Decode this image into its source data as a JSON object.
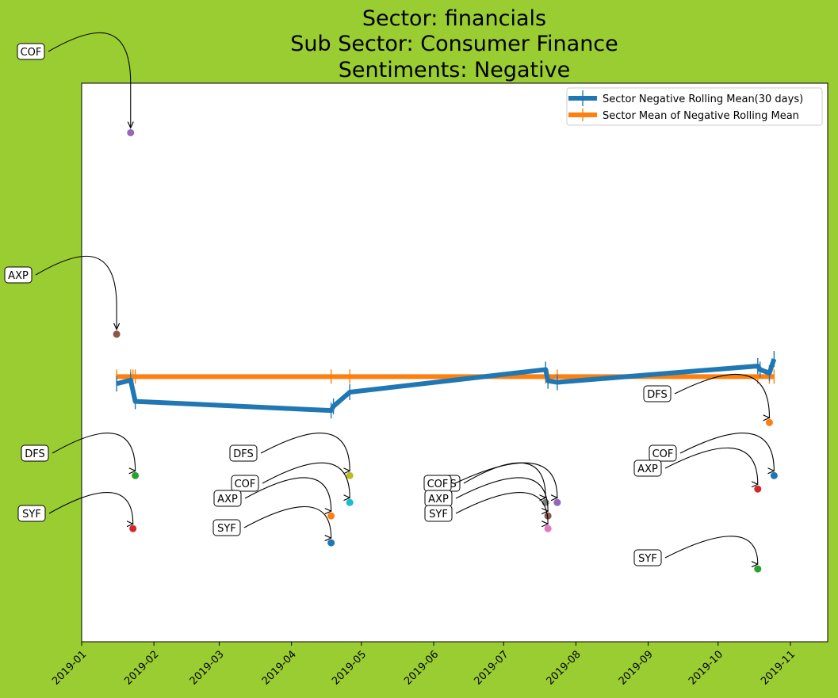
{
  "chart_data": {
    "type": "line",
    "title_lines": [
      "Sector:  financials",
      "Sub Sector:  Consumer Finance",
      "Sentiments:  Negative"
    ],
    "xlabel": "",
    "ylabel": "",
    "xlim": [
      "2019-01-01",
      "2019-11-17"
    ],
    "ylim": [
      -0.565,
      0.225
    ],
    "x_ticks": [
      "2019-01",
      "2019-02",
      "2019-03",
      "2019-04",
      "2019-05",
      "2019-06",
      "2019-07",
      "2019-08",
      "2019-09",
      "2019-10",
      "2019-11"
    ],
    "y_axis_labels_visible": false,
    "grid": false,
    "legend_position": "top-right",
    "colors": {
      "background": "#9acd32",
      "plot_bg": "#ffffff",
      "rolling_mean": "#1f77b4",
      "sector_mean": "#ff7f0e"
    },
    "series": [
      {
        "name": "Sector Negative Rolling Mean(30 days)",
        "color": "#1f77b4",
        "points": [
          [
            "2019-01-16",
            -0.2
          ],
          [
            "2019-01-22",
            -0.195
          ],
          [
            "2019-01-24",
            -0.225
          ],
          [
            "2019-04-18",
            -0.238
          ],
          [
            "2019-04-19",
            -0.232
          ],
          [
            "2019-04-26",
            -0.212
          ],
          [
            "2019-07-19",
            -0.18
          ],
          [
            "2019-07-20",
            -0.196
          ],
          [
            "2019-07-24",
            -0.198
          ],
          [
            "2019-10-18",
            -0.175
          ],
          [
            "2019-10-19",
            -0.18
          ],
          [
            "2019-10-23",
            -0.185
          ],
          [
            "2019-10-25",
            -0.165
          ]
        ]
      },
      {
        "name": "Sector Mean of Negative Rolling Mean",
        "color": "#ff7f0e",
        "value": -0.19,
        "x_range": [
          "2019-01-16",
          "2019-10-25"
        ],
        "marker_dates": [
          "2019-01-16",
          "2019-01-22",
          "2019-01-23",
          "2019-01-24",
          "2019-04-18",
          "2019-04-26",
          "2019-07-19",
          "2019-07-20",
          "2019-07-24",
          "2019-10-18",
          "2019-10-23",
          "2019-10-25"
        ]
      }
    ],
    "scatter_points": [
      {
        "date": "2019-01-22",
        "value": 0.155,
        "color": "#9467bd"
      },
      {
        "date": "2019-01-16",
        "value": -0.13,
        "color": "#8c564b"
      },
      {
        "date": "2019-01-24",
        "value": -0.33,
        "color": "#2ca02c"
      },
      {
        "date": "2019-01-23",
        "value": -0.405,
        "color": "#d62728"
      },
      {
        "date": "2019-04-26",
        "value": -0.33,
        "color": "#bcbd22"
      },
      {
        "date": "2019-04-26",
        "value": -0.368,
        "color": "#17becf"
      },
      {
        "date": "2019-04-18",
        "value": -0.387,
        "color": "#ff7f0e"
      },
      {
        "date": "2019-04-18",
        "value": -0.425,
        "color": "#1f77b4"
      },
      {
        "date": "2019-07-19",
        "value": -0.368,
        "color": "#7f7f7f"
      },
      {
        "date": "2019-07-24",
        "value": -0.368,
        "color": "#9467bd"
      },
      {
        "date": "2019-07-20",
        "value": -0.387,
        "color": "#8c564b"
      },
      {
        "date": "2019-07-20",
        "value": -0.405,
        "color": "#e377c2"
      },
      {
        "date": "2019-10-23",
        "value": -0.255,
        "color": "#ff7f0e"
      },
      {
        "date": "2019-10-25",
        "value": -0.33,
        "color": "#1f77b4"
      },
      {
        "date": "2019-10-18",
        "value": -0.349,
        "color": "#d62728"
      },
      {
        "date": "2019-10-18",
        "value": -0.462,
        "color": "#2ca02c"
      }
    ],
    "annotations": [
      {
        "label": "COF",
        "target": 0
      },
      {
        "label": "AXP",
        "target": 1
      },
      {
        "label": "DFS",
        "target": 2
      },
      {
        "label": "SYF",
        "target": 3
      },
      {
        "label": "DFS",
        "target": 4
      },
      {
        "label": "COF",
        "target": 5
      },
      {
        "label": "AXP",
        "target": 6
      },
      {
        "label": "SYF",
        "target": 7
      },
      {
        "label": "DFS",
        "target": 8
      },
      {
        "label": "COF",
        "target": 9
      },
      {
        "label": "AXP",
        "target": 10
      },
      {
        "label": "SYF",
        "target": 11
      },
      {
        "label": "DFS",
        "target": 12
      },
      {
        "label": "COF",
        "target": 13
      },
      {
        "label": "AXP",
        "target": 14
      },
      {
        "label": "SYF",
        "target": 15
      }
    ]
  }
}
